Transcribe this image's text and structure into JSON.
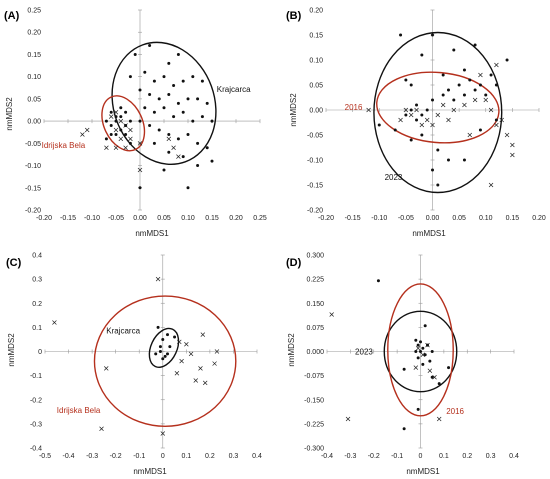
{
  "colors": {
    "black": "#111111",
    "red": "#b5301d"
  },
  "chart_data": [
    {
      "panel": "(A)",
      "type": "scatter",
      "xlabel": "nmMDS1",
      "ylabel": "nmMDS2",
      "xlim": [
        -0.2,
        0.25
      ],
      "ylim": [
        -0.2,
        0.25
      ],
      "xticks": [
        "-0.20",
        "-0.15",
        "-0.10",
        "-0.05",
        "0.00",
        "0.05",
        "0.10",
        "0.15",
        "0.20",
        "0.25"
      ],
      "yticks": [
        "-0.20",
        "-0.15",
        "-0.10",
        "-0.05",
        "0.00",
        "0.05",
        "0.10",
        "0.15",
        "0.20",
        "0.25"
      ],
      "xtick_values": [
        -0.2,
        -0.15,
        -0.1,
        -0.05,
        0,
        0.05,
        0.1,
        0.15,
        0.2,
        0.25
      ],
      "ytick_values": [
        -0.2,
        -0.15,
        -0.1,
        -0.05,
        0,
        0.05,
        0.1,
        0.15,
        0.2,
        0.25
      ],
      "ellipses": [
        {
          "cx": 0.05,
          "cy": 0.04,
          "rx": 0.105,
          "ry": 0.14,
          "rot": -20,
          "color": "black"
        },
        {
          "cx": -0.035,
          "cy": -0.005,
          "rx": 0.04,
          "ry": 0.065,
          "rot": -25,
          "color": "red"
        }
      ],
      "annotations": [
        {
          "text": "Krajcarca",
          "x": 0.16,
          "y": 0.065,
          "color": "black"
        },
        {
          "text": "Idrijska Bela",
          "x": -0.205,
          "y": -0.06,
          "color": "red"
        }
      ],
      "dots": [
        [
          -0.01,
          0.15
        ],
        [
          0.02,
          0.17
        ],
        [
          0.06,
          0.13
        ],
        [
          0.08,
          0.15
        ],
        [
          -0.02,
          0.1
        ],
        [
          0.01,
          0.11
        ],
        [
          0.03,
          0.09
        ],
        [
          0.05,
          0.1
        ],
        [
          0.07,
          0.08
        ],
        [
          0.09,
          0.09
        ],
        [
          0.11,
          0.1
        ],
        [
          0.13,
          0.09
        ],
        [
          0.0,
          0.07
        ],
        [
          0.02,
          0.06
        ],
        [
          0.04,
          0.05
        ],
        [
          0.06,
          0.06
        ],
        [
          0.08,
          0.04
        ],
        [
          0.1,
          0.05
        ],
        [
          0.12,
          0.05
        ],
        [
          0.14,
          0.04
        ],
        [
          0.01,
          0.03
        ],
        [
          0.03,
          0.02
        ],
        [
          0.05,
          0.03
        ],
        [
          0.07,
          0.01
        ],
        [
          0.09,
          0.02
        ],
        [
          0.11,
          0.0
        ],
        [
          0.13,
          0.01
        ],
        [
          0.15,
          0.0
        ],
        [
          0.0,
          0.0
        ],
        [
          0.02,
          -0.01
        ],
        [
          0.04,
          -0.02
        ],
        [
          0.06,
          -0.03
        ],
        [
          0.08,
          -0.04
        ],
        [
          0.1,
          -0.03
        ],
        [
          0.12,
          -0.05
        ],
        [
          0.14,
          -0.06
        ],
        [
          0.03,
          -0.05
        ],
        [
          0.06,
          -0.07
        ],
        [
          0.09,
          -0.08
        ],
        [
          0.12,
          -0.1
        ],
        [
          0.15,
          -0.09
        ],
        [
          0.05,
          -0.11
        ],
        [
          0.1,
          -0.15
        ],
        [
          0.0,
          -0.15
        ],
        [
          -0.04,
          0.01
        ],
        [
          -0.05,
          0.0
        ],
        [
          -0.06,
          -0.01
        ],
        [
          -0.03,
          0.02
        ],
        [
          -0.04,
          -0.02
        ],
        [
          -0.05,
          -0.03
        ],
        [
          -0.07,
          0.0
        ],
        [
          -0.06,
          0.02
        ],
        [
          -0.03,
          -0.01
        ],
        [
          -0.02,
          0.0
        ],
        [
          -0.05,
          0.01
        ],
        [
          -0.04,
          0.03
        ],
        [
          -0.06,
          -0.03
        ],
        [
          -0.03,
          -0.03
        ],
        [
          -0.02,
          -0.05
        ],
        [
          -0.07,
          -0.04
        ]
      ],
      "crosses": [
        [
          -0.05,
          0.02
        ],
        [
          -0.04,
          0.0
        ],
        [
          -0.03,
          -0.01
        ],
        [
          -0.06,
          0.01
        ],
        [
          -0.05,
          -0.02
        ],
        [
          -0.04,
          -0.04
        ],
        [
          -0.03,
          -0.06
        ],
        [
          -0.02,
          -0.04
        ],
        [
          -0.07,
          -0.06
        ],
        [
          -0.05,
          -0.06
        ],
        [
          0.0,
          -0.05
        ],
        [
          -0.02,
          -0.02
        ],
        [
          0.07,
          -0.06
        ],
        [
          0.06,
          -0.04
        ],
        [
          0.08,
          -0.08
        ],
        [
          -0.11,
          -0.02
        ],
        [
          -0.12,
          -0.03
        ],
        [
          0.0,
          -0.11
        ]
      ]
    },
    {
      "panel": "(B)",
      "type": "scatter",
      "xlabel": "nmMDS1",
      "ylabel": "nmMDS2",
      "xlim": [
        -0.2,
        0.2
      ],
      "ylim": [
        -0.2,
        0.2
      ],
      "xticks": [
        "-0.20",
        "-0.15",
        "-0.10",
        "-0.05",
        "0.00",
        "0.05",
        "0.10",
        "0.15",
        "0.20"
      ],
      "yticks": [
        "-0.20",
        "-0.15",
        "-0.10",
        "-0.05",
        "0.00",
        "0.05",
        "0.10",
        "0.15",
        "0.20"
      ],
      "xtick_values": [
        -0.2,
        -0.15,
        -0.1,
        -0.05,
        0,
        0.05,
        0.1,
        0.15,
        0.2
      ],
      "ytick_values": [
        -0.2,
        -0.15,
        -0.1,
        -0.05,
        0,
        0.05,
        0.1,
        0.15,
        0.2
      ],
      "ellipses": [
        {
          "cx": 0.01,
          "cy": -0.005,
          "rx": 0.12,
          "ry": 0.16,
          "rot": 0,
          "color": "black"
        },
        {
          "cx": 0.01,
          "cy": 0.005,
          "rx": 0.115,
          "ry": 0.07,
          "rot": 5,
          "color": "red"
        }
      ],
      "annotations": [
        {
          "text": "2016",
          "x": -0.165,
          "y": 0.0,
          "color": "red"
        },
        {
          "text": "2023",
          "x": -0.09,
          "y": -0.14,
          "color": "black"
        }
      ],
      "dots": [
        [
          -0.04,
          0.0
        ],
        [
          -0.03,
          0.01
        ],
        [
          -0.02,
          -0.01
        ],
        [
          -0.05,
          -0.01
        ],
        [
          -0.03,
          -0.02
        ],
        [
          -0.01,
          0.0
        ],
        [
          0.0,
          0.02
        ],
        [
          0.02,
          0.03
        ],
        [
          0.03,
          0.04
        ],
        [
          0.05,
          0.05
        ],
        [
          0.06,
          0.03
        ],
        [
          0.04,
          0.02
        ],
        [
          0.07,
          0.06
        ],
        [
          0.08,
          0.04
        ],
        [
          0.09,
          0.05
        ],
        [
          0.1,
          0.03
        ],
        [
          0.11,
          0.07
        ],
        [
          0.12,
          0.05
        ],
        [
          0.02,
          0.07
        ],
        [
          0.06,
          0.08
        ],
        [
          0.0,
          0.15
        ],
        [
          0.04,
          0.12
        ],
        [
          0.08,
          0.13
        ],
        [
          -0.06,
          0.15
        ],
        [
          -0.02,
          0.11
        ],
        [
          0.14,
          0.1
        ],
        [
          -0.05,
          0.06
        ],
        [
          -0.04,
          0.05
        ],
        [
          -0.02,
          -0.05
        ],
        [
          -0.04,
          -0.06
        ],
        [
          0.01,
          -0.08
        ],
        [
          0.0,
          -0.12
        ],
        [
          0.03,
          -0.1
        ],
        [
          0.06,
          -0.1
        ],
        [
          0.09,
          -0.04
        ],
        [
          0.12,
          -0.02
        ],
        [
          -0.07,
          -0.04
        ],
        [
          -0.1,
          -0.03
        ],
        [
          0.01,
          -0.15
        ]
      ],
      "crosses": [
        [
          -0.05,
          0.0
        ],
        [
          -0.04,
          -0.01
        ],
        [
          -0.03,
          0.0
        ],
        [
          -0.06,
          -0.02
        ],
        [
          -0.02,
          -0.03
        ],
        [
          -0.01,
          -0.02
        ],
        [
          0.0,
          -0.03
        ],
        [
          0.01,
          -0.01
        ],
        [
          0.03,
          -0.02
        ],
        [
          0.04,
          0.0
        ],
        [
          0.06,
          0.01
        ],
        [
          0.08,
          0.02
        ],
        [
          0.1,
          0.02
        ],
        [
          0.11,
          0.0
        ],
        [
          0.12,
          -0.03
        ],
        [
          0.13,
          -0.02
        ],
        [
          0.14,
          -0.05
        ],
        [
          0.15,
          -0.07
        ],
        [
          0.15,
          -0.09
        ],
        [
          0.07,
          -0.05
        ],
        [
          0.02,
          0.01
        ],
        [
          -0.12,
          0.0
        ],
        [
          0.11,
          -0.15
        ],
        [
          0.09,
          0.07
        ],
        [
          0.12,
          0.09
        ]
      ]
    },
    {
      "panel": "(C)",
      "type": "scatter",
      "xlabel": "nmMDS1",
      "ylabel": "nmMDS2",
      "xlim": [
        -0.5,
        0.4
      ],
      "ylim": [
        -0.4,
        0.4
      ],
      "xticks": [
        "-0.5",
        "-0.4",
        "-0.3",
        "-0.2",
        "-0.1",
        "0",
        "0.1",
        "0.2",
        "0.3",
        "0.4"
      ],
      "yticks": [
        "-0.4",
        "-0.3",
        "-0.2",
        "-0.1",
        "0",
        "0.1",
        "0.2",
        "0.3",
        "0.4"
      ],
      "xtick_values": [
        -0.5,
        -0.4,
        -0.3,
        -0.2,
        -0.1,
        0,
        0.1,
        0.2,
        0.3,
        0.4
      ],
      "ytick_values": [
        -0.4,
        -0.3,
        -0.2,
        -0.1,
        0,
        0.1,
        0.2,
        0.3,
        0.4
      ],
      "ellipses": [
        {
          "cx": 0.005,
          "cy": 0.015,
          "rx": 0.055,
          "ry": 0.085,
          "rot": 25,
          "color": "black"
        },
        {
          "cx": 0.01,
          "cy": -0.04,
          "rx": 0.3,
          "ry": 0.27,
          "rot": 0,
          "color": "red"
        }
      ],
      "annotations": [
        {
          "text": "Krajcarca",
          "x": -0.24,
          "y": 0.075,
          "color": "black"
        },
        {
          "text": "Idrijska Bela",
          "x": -0.45,
          "y": -0.255,
          "color": "red"
        }
      ],
      "dots": [
        [
          -0.02,
          0.1
        ],
        [
          0.0,
          0.05
        ],
        [
          0.02,
          0.07
        ],
        [
          -0.01,
          0.0
        ],
        [
          0.01,
          -0.02
        ],
        [
          -0.03,
          -0.01
        ],
        [
          0.03,
          0.02
        ],
        [
          0.0,
          -0.03
        ],
        [
          0.02,
          -0.01
        ],
        [
          0.05,
          0.06
        ],
        [
          -0.01,
          0.02
        ]
      ],
      "crosses": [
        [
          -0.46,
          0.12
        ],
        [
          -0.02,
          0.3
        ],
        [
          -0.26,
          -0.32
        ],
        [
          0.0,
          -0.34
        ],
        [
          -0.24,
          -0.07
        ],
        [
          0.17,
          0.07
        ],
        [
          0.23,
          0.0
        ],
        [
          0.16,
          -0.07
        ],
        [
          0.14,
          -0.12
        ],
        [
          0.18,
          -0.13
        ],
        [
          0.22,
          -0.05
        ],
        [
          0.1,
          0.03
        ],
        [
          0.12,
          -0.01
        ],
        [
          0.06,
          -0.09
        ],
        [
          0.07,
          0.04
        ],
        [
          0.08,
          -0.04
        ]
      ]
    },
    {
      "panel": "(D)",
      "type": "scatter",
      "xlabel": "nmMDS1",
      "ylabel": "nmMDS2",
      "xlim": [
        -0.4,
        0.4
      ],
      "ylim": [
        -0.3,
        0.3
      ],
      "xticks": [
        "-0.4",
        "-0.3",
        "-0.2",
        "-0.1",
        "0",
        "0.1",
        "0.2",
        "0.3",
        "0.4"
      ],
      "yticks": [
        "-0.300",
        "-0.225",
        "-0.150",
        "-0.075",
        "0.000",
        "0.075",
        "0.150",
        "0.225",
        "0.300"
      ],
      "xtick_values": [
        -0.4,
        -0.3,
        -0.2,
        -0.1,
        0,
        0.1,
        0.2,
        0.3,
        0.4
      ],
      "ytick_values": [
        -0.3,
        -0.225,
        -0.15,
        -0.075,
        0,
        0.075,
        0.15,
        0.225,
        0.3
      ],
      "ellipses": [
        {
          "cx": 0.0,
          "cy": 0.0,
          "rx": 0.155,
          "ry": 0.125,
          "rot": 0,
          "color": "black"
        },
        {
          "cx": 0.0,
          "cy": 0.005,
          "rx": 0.14,
          "ry": 0.205,
          "rot": 0,
          "color": "red"
        }
      ],
      "annotations": [
        {
          "text": "2023",
          "x": -0.28,
          "y": -0.01,
          "color": "black"
        },
        {
          "text": "2016",
          "x": 0.11,
          "y": -0.195,
          "color": "red"
        }
      ],
      "dots": [
        [
          -0.18,
          0.22
        ],
        [
          -0.02,
          0.035
        ],
        [
          -0.01,
          0.02
        ],
        [
          0.0,
          0.03
        ],
        [
          0.01,
          0.01
        ],
        [
          0.0,
          0.0
        ],
        [
          0.02,
          -0.01
        ],
        [
          -0.02,
          0.0
        ],
        [
          0.03,
          0.02
        ],
        [
          -0.01,
          -0.02
        ],
        [
          0.01,
          -0.04
        ],
        [
          0.04,
          -0.03
        ],
        [
          0.05,
          0.0
        ],
        [
          -0.07,
          -0.055
        ],
        [
          0.05,
          -0.08
        ],
        [
          0.08,
          -0.1
        ],
        [
          0.12,
          -0.05
        ],
        [
          -0.01,
          -0.18
        ],
        [
          -0.07,
          -0.24
        ],
        [
          0.02,
          0.08
        ]
      ],
      "crosses": [
        [
          -0.38,
          0.115
        ],
        [
          -0.31,
          -0.21
        ],
        [
          0.08,
          -0.21
        ],
        [
          -0.02,
          -0.05
        ],
        [
          0.03,
          0.02
        ],
        [
          0.01,
          -0.01
        ],
        [
          0.04,
          -0.06
        ],
        [
          -0.01,
          0.01
        ],
        [
          0.06,
          -0.08
        ]
      ]
    }
  ],
  "panels": [
    {
      "label": "(A)",
      "title": "",
      "xlabel": "nmMDS1",
      "ylabel": "nmMDS2",
      "ann1": "Krajcarca",
      "ann2": "Idrijska Bela"
    },
    {
      "label": "(B)",
      "title": "",
      "xlabel": "nmMDS1",
      "ylabel": "nmMDS2",
      "ann1": "2016",
      "ann2": "2023"
    },
    {
      "label": "(C)",
      "title": "",
      "xlabel": "nmMDS1",
      "ylabel": "nmMDS2",
      "ann1": "Krajcarca",
      "ann2": "Idrijska Bela"
    },
    {
      "label": "(D)",
      "title": "",
      "xlabel": "nmMDS1",
      "ylabel": "nmMDS2",
      "ann1": "2023",
      "ann2": "2016"
    }
  ]
}
